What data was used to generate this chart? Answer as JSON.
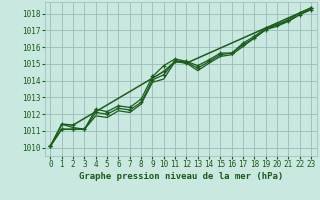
{
  "title": "Graphe pression niveau de la mer (hPa)",
  "bg_color": "#c8e8e0",
  "grid_color": "#99bbbb",
  "line_color": "#1a5c1a",
  "marker_color": "#1a5c1a",
  "xlim": [
    -0.5,
    23.5
  ],
  "ylim": [
    1009.5,
    1018.7
  ],
  "yticks": [
    1010,
    1011,
    1012,
    1013,
    1014,
    1015,
    1016,
    1017,
    1018
  ],
  "xticks": [
    0,
    1,
    2,
    3,
    4,
    5,
    6,
    7,
    8,
    9,
    10,
    11,
    12,
    13,
    14,
    15,
    16,
    17,
    18,
    19,
    20,
    21,
    22,
    23
  ],
  "series": [
    {
      "x": [
        0,
        1,
        2,
        3,
        4,
        5,
        6,
        7,
        8,
        9,
        10,
        11,
        12,
        13,
        14,
        15,
        16,
        17,
        18,
        19,
        20,
        21,
        22,
        23
      ],
      "y": [
        1010.1,
        1011.4,
        1011.2,
        1011.1,
        1011.9,
        1011.8,
        1012.2,
        1012.1,
        1012.6,
        1013.9,
        1014.1,
        1015.15,
        1015.05,
        1014.6,
        1015.05,
        1015.45,
        1015.55,
        1016.05,
        1016.55,
        1017.05,
        1017.25,
        1017.55,
        1017.95,
        1018.25
      ],
      "marker": false,
      "lw": 0.9
    },
    {
      "x": [
        0,
        1,
        2,
        3,
        4,
        5,
        6,
        7,
        8,
        9,
        10,
        11,
        12,
        13,
        14,
        15,
        16,
        17,
        18,
        19,
        20,
        21,
        22,
        23
      ],
      "y": [
        1010.1,
        1011.1,
        1011.1,
        1011.1,
        1012.1,
        1012.0,
        1012.35,
        1012.25,
        1012.7,
        1014.05,
        1014.35,
        1015.2,
        1015.1,
        1014.75,
        1015.15,
        1015.55,
        1015.65,
        1016.15,
        1016.55,
        1017.05,
        1017.35,
        1017.55,
        1017.95,
        1018.25
      ],
      "marker": true,
      "lw": 0.9
    },
    {
      "x": [
        0,
        1,
        2,
        3,
        4,
        5,
        6,
        7,
        8,
        9,
        10,
        11,
        12,
        13,
        14,
        15,
        16,
        17,
        18,
        19,
        20,
        21,
        22,
        23
      ],
      "y": [
        1010.1,
        1011.1,
        1011.1,
        1011.1,
        1012.3,
        1012.15,
        1012.5,
        1012.4,
        1012.9,
        1014.25,
        1014.9,
        1015.3,
        1015.15,
        1014.9,
        1015.25,
        1015.65,
        1015.65,
        1016.25,
        1016.65,
        1017.15,
        1017.35,
        1017.65,
        1018.05,
        1018.35
      ],
      "marker": true,
      "lw": 0.9
    },
    {
      "x": [
        0,
        1,
        2,
        10,
        11,
        12,
        23
      ],
      "y": [
        1010.1,
        1011.4,
        1011.35,
        1014.55,
        1015.15,
        1015.05,
        1018.35
      ],
      "marker": true,
      "lw": 1.1
    }
  ],
  "font_color": "#1a5c1a",
  "tick_fontsize": 5.5,
  "title_fontsize": 6.5
}
